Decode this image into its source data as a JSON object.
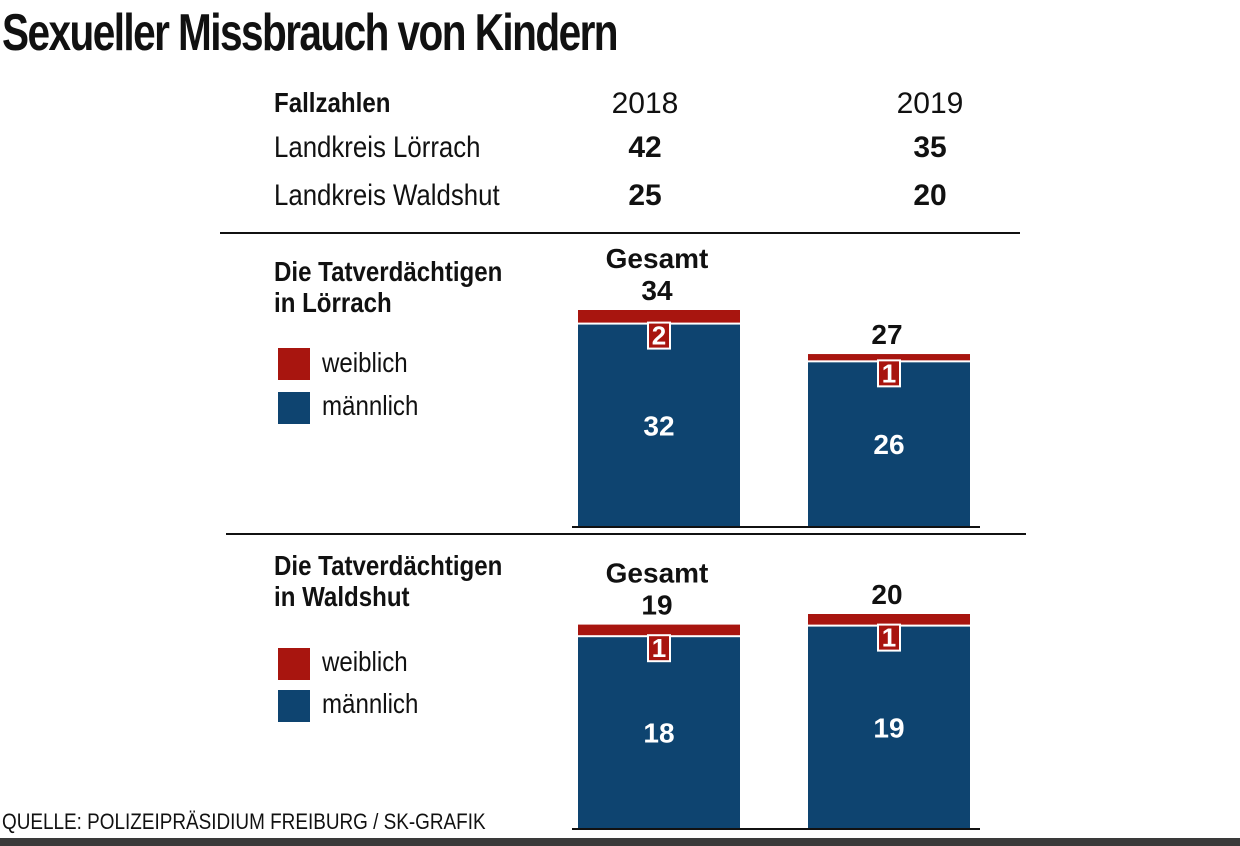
{
  "title": "Sexueller Missbrauch von Kindern",
  "table": {
    "header": "Fallzahlen",
    "years": [
      "2018",
      "2019"
    ],
    "rows": [
      {
        "label": "Landkreis Lörrach",
        "values": [
          "42",
          "35"
        ]
      },
      {
        "label": "Landkreis Waldshut",
        "values": [
          "25",
          "20"
        ]
      }
    ]
  },
  "legend": {
    "female": "weiblich",
    "male": "männlich"
  },
  "colors": {
    "female": "#a8150f",
    "male": "#0e4470"
  },
  "source": "QUELLE: POLIZEIPRÄSIDIUM FREIBURG / SK-GRAFIK",
  "chart_data": [
    {
      "type": "bar",
      "stacked": true,
      "title_line1": "Die Tatverdächtigen",
      "title_line2": "in Lörrach",
      "total_caption": "Gesamt",
      "categories": [
        "2018",
        "2019"
      ],
      "totals": [
        34,
        27
      ],
      "series": [
        {
          "name": "männlich",
          "values": [
            32,
            26
          ]
        },
        {
          "name": "weiblich",
          "values": [
            2,
            1
          ]
        }
      ],
      "ylim": [
        0,
        34
      ]
    },
    {
      "type": "bar",
      "stacked": true,
      "title_line1": "Die Tatverdächtigen",
      "title_line2": "in Waldshut",
      "total_caption": "Gesamt",
      "categories": [
        "2018",
        "2019"
      ],
      "totals": [
        19,
        20
      ],
      "series": [
        {
          "name": "männlich",
          "values": [
            18,
            19
          ]
        },
        {
          "name": "weiblich",
          "values": [
            1,
            1
          ]
        }
      ],
      "ylim": [
        0,
        20
      ]
    }
  ]
}
